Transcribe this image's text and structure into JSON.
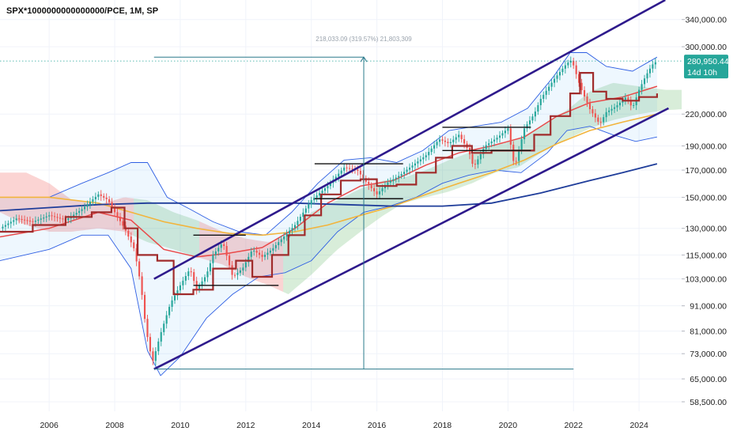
{
  "chart_data": {
    "type": "candlestick",
    "title": "SPX*1000000000000000/PCE, 1M, SP",
    "x_ticks": [
      "2006",
      "2008",
      "2010",
      "2012",
      "2014",
      "2016",
      "2018",
      "2020",
      "2022",
      "2024"
    ],
    "y_ticks": [
      "340,000.00",
      "300,000.00",
      "220,000.00",
      "190,000.00",
      "170,000.00",
      "150,000.00",
      "130,000.00",
      "115,000.00",
      "103,000.00",
      "91,000.00",
      "81,000.00",
      "73,000.00",
      "65,000.00",
      "58,500.00"
    ],
    "y_scale": "log",
    "ylim": [
      56000,
      372000
    ],
    "xlim": [
      2004.5,
      2025.3
    ],
    "last_price": {
      "value": 280950.44,
      "label": "280,950.44",
      "countdown": "14d 10h"
    },
    "measure_label": "218,033.09 (319.57%) 21,803,309",
    "measure": {
      "x": 2015.6,
      "y_from": 68000,
      "y_to": 286000
    },
    "colors": {
      "up": "#26a69a",
      "down": "#ef5350",
      "channel": "#2e1a8c",
      "kijun": "#a02b2b",
      "ma_red": "#e94a4a",
      "ma_yellow": "#f2b43c",
      "ma_blue": "#1f3d9a",
      "bollinger": "#2f5fe3",
      "badge": "#26a69a"
    },
    "channel_lines": [
      {
        "name": "",
        "points": [
          [
            2009.2,
            103000
          ],
          [
            2024.8,
            372000
          ]
        ]
      },
      {
        "name": "",
        "points": [
          [
            2009.2,
            68000
          ],
          [
            2024.9,
            226000
          ]
        ]
      }
    ],
    "horizontal_segments": [
      {
        "x": [
          2009.2,
          2022.0
        ],
        "y": 68000
      },
      {
        "x": [
          2009.2,
          2015.6
        ],
        "y": 286000
      },
      {
        "x": [
          2010.4,
          2013.0
        ],
        "y": 100000
      },
      {
        "x": [
          2010.4,
          2012.0
        ],
        "y": 126000
      },
      {
        "x": [
          2014.1,
          2016.8
        ],
        "y": 175000
      },
      {
        "x": [
          2014.1,
          2016.8
        ],
        "y": 149000
      },
      {
        "x": [
          2018.0,
          2020.7
        ],
        "y": 207000
      },
      {
        "x": [
          2018.0,
          2020.7
        ],
        "y": 186000
      }
    ],
    "price_path": [
      [
        2004.5,
        130000
      ],
      [
        2005.0,
        136000
      ],
      [
        2005.5,
        134000
      ],
      [
        2006.0,
        138000
      ],
      [
        2006.5,
        135000
      ],
      [
        2007.0,
        142000
      ],
      [
        2007.5,
        152000
      ],
      [
        2007.8,
        148000
      ],
      [
        2008.0,
        140000
      ],
      [
        2008.3,
        130000
      ],
      [
        2008.6,
        118000
      ],
      [
        2008.8,
        100000
      ],
      [
        2008.95,
        82000
      ],
      [
        2009.15,
        70000
      ],
      [
        2009.4,
        80000
      ],
      [
        2009.7,
        92000
      ],
      [
        2010.0,
        100000
      ],
      [
        2010.3,
        108000
      ],
      [
        2010.5,
        98000
      ],
      [
        2010.8,
        105000
      ],
      [
        2011.0,
        115000
      ],
      [
        2011.3,
        122000
      ],
      [
        2011.6,
        104000
      ],
      [
        2011.9,
        108000
      ],
      [
        2012.2,
        118000
      ],
      [
        2012.5,
        114000
      ],
      [
        2012.8,
        118000
      ],
      [
        2013.0,
        122000
      ],
      [
        2013.5,
        132000
      ],
      [
        2014.0,
        148000
      ],
      [
        2014.5,
        158000
      ],
      [
        2015.0,
        172000
      ],
      [
        2015.4,
        170000
      ],
      [
        2015.7,
        160000
      ],
      [
        2016.0,
        152000
      ],
      [
        2016.3,
        160000
      ],
      [
        2016.7,
        166000
      ],
      [
        2017.0,
        172000
      ],
      [
        2017.5,
        182000
      ],
      [
        2017.9,
        196000
      ],
      [
        2018.2,
        192000
      ],
      [
        2018.5,
        200000
      ],
      [
        2018.8,
        186000
      ],
      [
        2018.95,
        172000
      ],
      [
        2019.3,
        190000
      ],
      [
        2019.7,
        198000
      ],
      [
        2020.0,
        206000
      ],
      [
        2020.2,
        172000
      ],
      [
        2020.5,
        206000
      ],
      [
        2020.8,
        220000
      ],
      [
        2021.0,
        236000
      ],
      [
        2021.4,
        258000
      ],
      [
        2021.8,
        278000
      ],
      [
        2021.95,
        282000
      ],
      [
        2022.2,
        250000
      ],
      [
        2022.5,
        225000
      ],
      [
        2022.8,
        210000
      ],
      [
        2023.0,
        222000
      ],
      [
        2023.3,
        228000
      ],
      [
        2023.6,
        238000
      ],
      [
        2023.8,
        226000
      ],
      [
        2024.0,
        246000
      ],
      [
        2024.2,
        262000
      ],
      [
        2024.4,
        276000
      ],
      [
        2024.55,
        281000
      ]
    ],
    "kijun": [
      [
        2004.5,
        128000
      ],
      [
        2005.5,
        132000
      ],
      [
        2006.5,
        137000
      ],
      [
        2007.3,
        140000
      ],
      [
        2007.9,
        143000
      ],
      [
        2008.3,
        130000
      ],
      [
        2008.7,
        115000
      ],
      [
        2009.3,
        112000
      ],
      [
        2009.8,
        96000
      ],
      [
        2010.4,
        98000
      ],
      [
        2011.0,
        108000
      ],
      [
        2011.7,
        112000
      ],
      [
        2012.2,
        104000
      ],
      [
        2012.8,
        115000
      ],
      [
        2013.3,
        126000
      ],
      [
        2013.8,
        138000
      ],
      [
        2014.3,
        152000
      ],
      [
        2014.9,
        162000
      ],
      [
        2015.5,
        163000
      ],
      [
        2016.0,
        158000
      ],
      [
        2016.6,
        159000
      ],
      [
        2017.2,
        168000
      ],
      [
        2017.8,
        180000
      ],
      [
        2018.3,
        190000
      ],
      [
        2018.9,
        184000
      ],
      [
        2019.5,
        186000
      ],
      [
        2020.2,
        186000
      ],
      [
        2020.8,
        200000
      ],
      [
        2021.3,
        218000
      ],
      [
        2021.9,
        242000
      ],
      [
        2022.2,
        266000
      ],
      [
        2022.6,
        244000
      ],
      [
        2023.0,
        236000
      ],
      [
        2023.5,
        234000
      ],
      [
        2024.0,
        238000
      ],
      [
        2024.55,
        242000
      ]
    ],
    "ma_red": [
      [
        2004.5,
        125000
      ],
      [
        2006.0,
        130000
      ],
      [
        2007.5,
        140000
      ],
      [
        2008.5,
        135000
      ],
      [
        2009.5,
        118000
      ],
      [
        2010.5,
        114000
      ],
      [
        2011.5,
        116000
      ],
      [
        2012.5,
        119000
      ],
      [
        2013.5,
        130000
      ],
      [
        2014.5,
        146000
      ],
      [
        2015.5,
        158000
      ],
      [
        2016.5,
        162000
      ],
      [
        2017.5,
        174000
      ],
      [
        2018.5,
        184000
      ],
      [
        2019.5,
        190000
      ],
      [
        2020.5,
        198000
      ],
      [
        2021.5,
        218000
      ],
      [
        2022.5,
        232000
      ],
      [
        2023.5,
        238000
      ],
      [
        2024.55,
        250000
      ]
    ],
    "ma_yellow": [
      [
        2004.5,
        150000
      ],
      [
        2006.0,
        150000
      ],
      [
        2007.5,
        146000
      ],
      [
        2008.5,
        140000
      ],
      [
        2009.5,
        134000
      ],
      [
        2010.5,
        130000
      ],
      [
        2011.5,
        127000
      ],
      [
        2012.5,
        126000
      ],
      [
        2013.5,
        128000
      ],
      [
        2014.5,
        132000
      ],
      [
        2015.5,
        138000
      ],
      [
        2016.5,
        144000
      ],
      [
        2017.5,
        152000
      ],
      [
        2018.5,
        160000
      ],
      [
        2019.5,
        168000
      ],
      [
        2020.5,
        178000
      ],
      [
        2021.5,
        192000
      ],
      [
        2022.5,
        204000
      ],
      [
        2023.5,
        212000
      ],
      [
        2024.55,
        220000
      ]
    ],
    "ma_blue": [
      [
        2004.5,
        141000
      ],
      [
        2006.0,
        143000
      ],
      [
        2007.5,
        145000
      ],
      [
        2009.0,
        146000
      ],
      [
        2010.5,
        146000
      ],
      [
        2012.0,
        146000
      ],
      [
        2013.5,
        146000
      ],
      [
        2015.0,
        145000
      ],
      [
        2016.5,
        144000
      ],
      [
        2018.0,
        144000
      ],
      [
        2019.5,
        146000
      ],
      [
        2021.0,
        153000
      ],
      [
        2022.5,
        162000
      ],
      [
        2023.5,
        168000
      ],
      [
        2024.55,
        175000
      ]
    ],
    "cloud_upper": [
      [
        2004.5,
        168000
      ],
      [
        2005.3,
        168000
      ],
      [
        2006.0,
        160000
      ],
      [
        2006.7,
        148000
      ],
      [
        2007.5,
        145000
      ],
      [
        2008.3,
        150000
      ],
      [
        2009.0,
        148000
      ],
      [
        2009.8,
        140000
      ],
      [
        2010.5,
        135000
      ],
      [
        2011.3,
        128000
      ],
      [
        2012.0,
        124000
      ],
      [
        2012.7,
        122000
      ],
      [
        2013.3,
        126000
      ],
      [
        2014.0,
        140000
      ],
      [
        2014.8,
        148000
      ],
      [
        2015.5,
        156000
      ],
      [
        2016.2,
        162000
      ],
      [
        2016.8,
        164000
      ],
      [
        2017.5,
        170000
      ],
      [
        2018.2,
        178000
      ],
      [
        2018.9,
        185000
      ],
      [
        2019.6,
        190000
      ],
      [
        2020.3,
        196000
      ],
      [
        2021.0,
        208000
      ],
      [
        2021.8,
        224000
      ],
      [
        2022.5,
        244000
      ],
      [
        2023.2,
        254000
      ],
      [
        2024.0,
        250000
      ],
      [
        2024.8,
        246000
      ],
      [
        2025.3,
        246000
      ]
    ],
    "cloud_lower": [
      [
        2004.5,
        140000
      ],
      [
        2005.3,
        132000
      ],
      [
        2006.0,
        128000
      ],
      [
        2006.7,
        128000
      ],
      [
        2007.5,
        130000
      ],
      [
        2008.3,
        128000
      ],
      [
        2009.0,
        122000
      ],
      [
        2009.8,
        118000
      ],
      [
        2010.5,
        114000
      ],
      [
        2011.3,
        110000
      ],
      [
        2012.0,
        104000
      ],
      [
        2012.7,
        100000
      ],
      [
        2013.3,
        96000
      ],
      [
        2014.0,
        105000
      ],
      [
        2014.8,
        118000
      ],
      [
        2015.5,
        128000
      ],
      [
        2016.2,
        138000
      ],
      [
        2016.8,
        146000
      ],
      [
        2017.5,
        150000
      ],
      [
        2018.2,
        154000
      ],
      [
        2018.9,
        160000
      ],
      [
        2019.6,
        168000
      ],
      [
        2020.3,
        172000
      ],
      [
        2021.0,
        184000
      ],
      [
        2021.8,
        196000
      ],
      [
        2022.5,
        206000
      ],
      [
        2023.2,
        214000
      ],
      [
        2024.0,
        220000
      ],
      [
        2024.8,
        224000
      ],
      [
        2025.3,
        225000
      ]
    ],
    "bollinger_upper": [
      [
        2004.5,
        150000
      ],
      [
        2006.0,
        150000
      ],
      [
        2007.0,
        160000
      ],
      [
        2007.8,
        168000
      ],
      [
        2008.5,
        176000
      ],
      [
        2009.0,
        176000
      ],
      [
        2009.6,
        150000
      ],
      [
        2010.3,
        142000
      ],
      [
        2011.0,
        134000
      ],
      [
        2011.8,
        128000
      ],
      [
        2012.6,
        126000
      ],
      [
        2013.4,
        140000
      ],
      [
        2014.2,
        160000
      ],
      [
        2015.0,
        178000
      ],
      [
        2015.8,
        180000
      ],
      [
        2016.6,
        176000
      ],
      [
        2017.4,
        186000
      ],
      [
        2018.2,
        204000
      ],
      [
        2019.0,
        208000
      ],
      [
        2019.8,
        212000
      ],
      [
        2020.6,
        226000
      ],
      [
        2021.4,
        262000
      ],
      [
        2021.9,
        292000
      ],
      [
        2022.4,
        292000
      ],
      [
        2023.0,
        274000
      ],
      [
        2023.8,
        268000
      ],
      [
        2024.55,
        286000
      ]
    ],
    "bollinger_lower": [
      [
        2004.5,
        112000
      ],
      [
        2006.0,
        118000
      ],
      [
        2007.0,
        126000
      ],
      [
        2007.8,
        126000
      ],
      [
        2008.5,
        108000
      ],
      [
        2009.0,
        74000
      ],
      [
        2009.4,
        66000
      ],
      [
        2010.0,
        72000
      ],
      [
        2010.8,
        86000
      ],
      [
        2011.6,
        96000
      ],
      [
        2012.4,
        104000
      ],
      [
        2013.2,
        106000
      ],
      [
        2014.0,
        112000
      ],
      [
        2014.8,
        128000
      ],
      [
        2015.6,
        140000
      ],
      [
        2016.4,
        144000
      ],
      [
        2017.2,
        150000
      ],
      [
        2018.0,
        160000
      ],
      [
        2018.8,
        166000
      ],
      [
        2019.6,
        170000
      ],
      [
        2020.4,
        168000
      ],
      [
        2021.2,
        184000
      ],
      [
        2021.8,
        204000
      ],
      [
        2022.5,
        208000
      ],
      [
        2023.2,
        200000
      ],
      [
        2023.9,
        194000
      ],
      [
        2024.55,
        198000
      ]
    ]
  }
}
